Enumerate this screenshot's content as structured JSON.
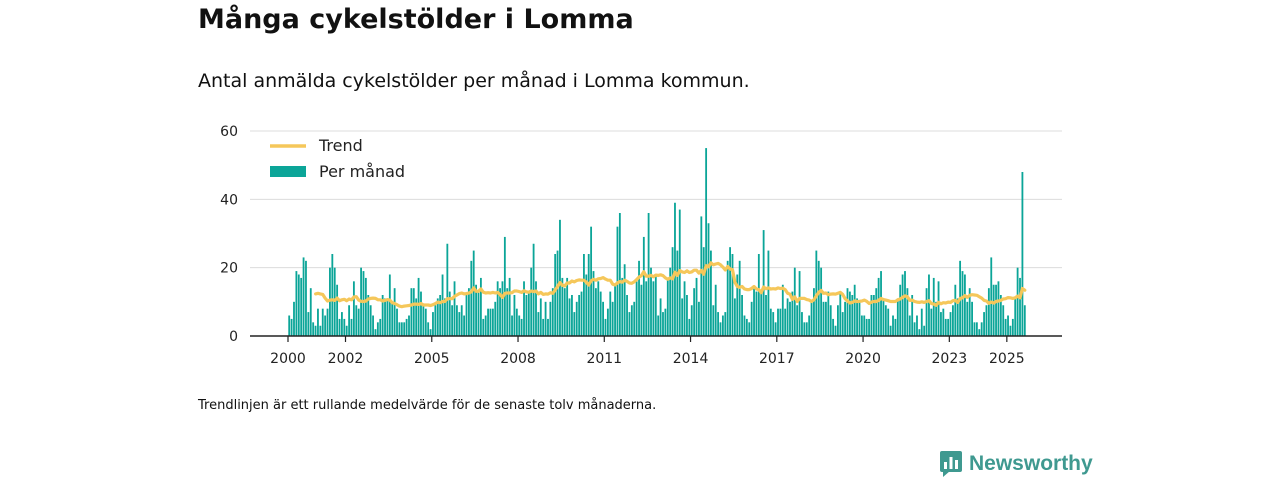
{
  "title": "Många cykelstölder i Lomma",
  "subtitle": "Antal anmälda cykelstölder per månad i Lomma kommun.",
  "footnote": "Trendlinjen är ett rullande medelvärde för de senaste tolv månaderna.",
  "brand": {
    "name": "Newsworthy",
    "color": "#3f9990"
  },
  "chart_data": {
    "type": "bar",
    "x_unit": "month",
    "x_start": "2000-01",
    "x_end": "2025-08",
    "ylim": [
      0,
      60
    ],
    "yticks": [
      0,
      20,
      40,
      60
    ],
    "xticks": [
      "2000",
      "2002",
      "2005",
      "2008",
      "2011",
      "2014",
      "2017",
      "2020",
      "2023",
      "2025"
    ],
    "legend_position": "top-left",
    "grid": true,
    "colors": {
      "bars": "#0ba598",
      "trend": "#f5c75a"
    },
    "legend": [
      "Trend",
      "Per månad"
    ],
    "peaks": [
      {
        "x": "2014-07",
        "value": 55
      },
      {
        "x": "2025-07",
        "value": 48
      }
    ],
    "trend_window_months": 12
  }
}
